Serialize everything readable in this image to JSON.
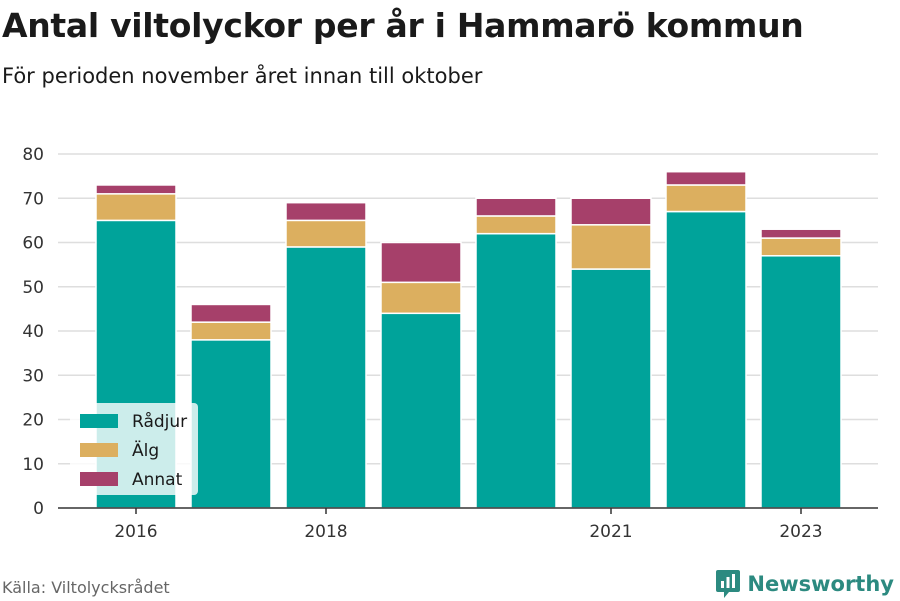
{
  "title": "Antal viltolyckor per år i Hammarö kommun",
  "subtitle": "För perioden november året innan till oktober",
  "source": "Källa: Viltolycksrådet",
  "brand": {
    "name": "Newsworthy",
    "icon": "newsworthy-logo-icon",
    "color": "#2c8a80"
  },
  "chart_data": {
    "type": "bar",
    "stacked": true,
    "categories": [
      "2016",
      "2017",
      "2018",
      "2019",
      "2020",
      "2021",
      "2022",
      "2023"
    ],
    "x_tick_labels": [
      "2016",
      "2018",
      "2021",
      "2023"
    ],
    "series": [
      {
        "name": "Rådjur",
        "color": "#00a39a",
        "values": [
          65,
          38,
          59,
          44,
          62,
          54,
          67,
          57
        ]
      },
      {
        "name": "Älg",
        "color": "#dcaf5f",
        "values": [
          6,
          4,
          6,
          7,
          4,
          10,
          6,
          4
        ]
      },
      {
        "name": "Annat",
        "color": "#a6406a",
        "values": [
          2,
          4,
          4,
          9,
          4,
          6,
          3,
          2
        ]
      }
    ],
    "ylim": [
      0,
      80
    ],
    "yticks": [
      0,
      10,
      20,
      30,
      40,
      50,
      60,
      70,
      80
    ],
    "grid": true,
    "legend_position": "bottom-left"
  }
}
